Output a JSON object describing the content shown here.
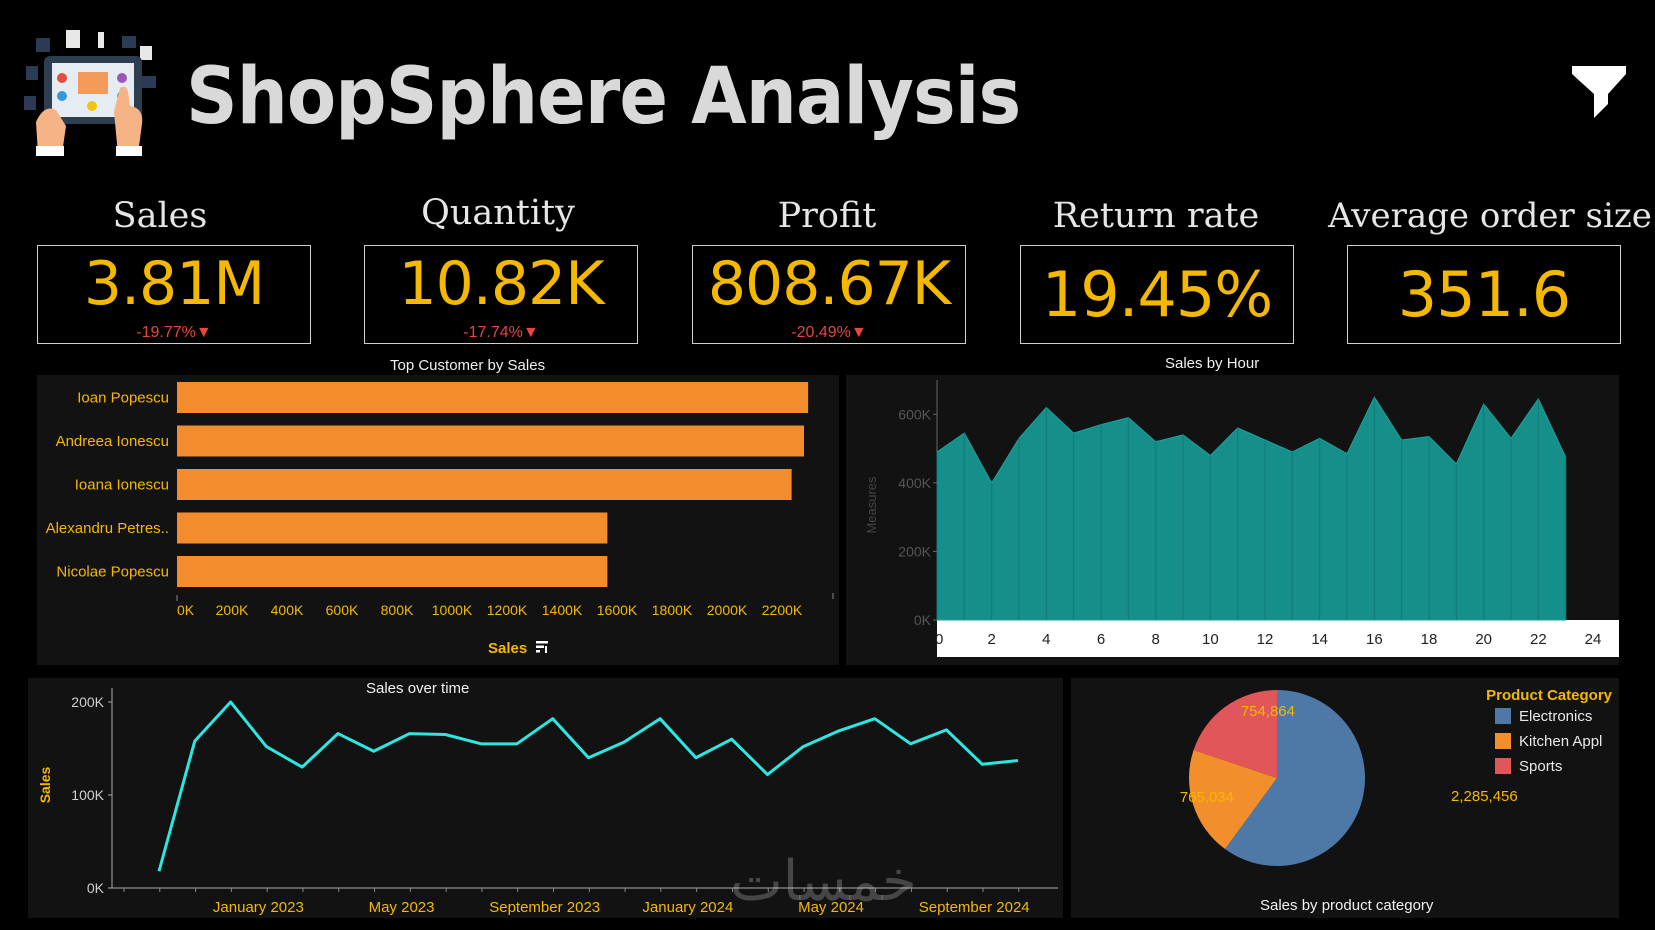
{
  "header": {
    "title": "ShopSphere Analysis",
    "logo_icon": "shopping-tablet-logo-icon",
    "filter_icon": "filter-icon"
  },
  "kpis": [
    {
      "label": "Sales",
      "value": "3.81M",
      "delta": "-19.77%▼"
    },
    {
      "label": "Quantity",
      "value": "10.82K",
      "delta": "-17.74%▼"
    },
    {
      "label": "Profit",
      "value": "808.67K",
      "delta": "-20.49%▼"
    },
    {
      "label": "Return rate",
      "value": "19.45%",
      "delta": ""
    },
    {
      "label": "Average order size",
      "value": "351.6",
      "delta": ""
    }
  ],
  "colors": {
    "background": "#000000",
    "panel": "#121212",
    "kpi_value": "#f5b800",
    "kpi_delta": "#e8453c",
    "bar": "#f28c2e",
    "area": "#168f8a",
    "line": "#2ee6e0",
    "axis_label": "#f5b800",
    "electronics": "#4e79a7",
    "kitchen": "#f28e2b",
    "sports": "#e15759"
  },
  "chart_data": [
    {
      "type": "bar",
      "title": "Top Customer by Sales",
      "xlabel": "Sales",
      "categories": [
        "Ioan Popescu",
        "Andreea Ionescu",
        "Ioana Ionescu",
        "Alexandru Petres..",
        "Nicolae Popescu"
      ],
      "values": [
        2295000,
        2280000,
        2235000,
        1565000,
        1565000
      ],
      "xlim": [
        0,
        2400000
      ],
      "xticks": [
        "0K",
        "200K",
        "400K",
        "600K",
        "800K",
        "1000K",
        "1200K",
        "1400K",
        "1600K",
        "1800K",
        "2000K",
        "2200K"
      ],
      "sort_icon": "sort-descending-icon"
    },
    {
      "type": "area",
      "title": "Sales by Hour",
      "ylabel": "Measures",
      "x": [
        0,
        1,
        2,
        3,
        4,
        5,
        6,
        7,
        8,
        9,
        10,
        11,
        12,
        13,
        14,
        15,
        16,
        17,
        18,
        19,
        20,
        21,
        22,
        23
      ],
      "values": [
        490000,
        545000,
        400000,
        530000,
        620000,
        545000,
        570000,
        590000,
        520000,
        540000,
        480000,
        560000,
        525000,
        490000,
        530000,
        485000,
        650000,
        525000,
        535000,
        455000,
        630000,
        530000,
        645000,
        475000
      ],
      "ylim": [
        0,
        700000
      ],
      "yticks": [
        "0K",
        "200K",
        "400K",
        "600K"
      ],
      "xticks": [
        "0",
        "2",
        "4",
        "6",
        "8",
        "10",
        "12",
        "14",
        "16",
        "18",
        "20",
        "22",
        "24"
      ]
    },
    {
      "type": "line",
      "title": "Sales over time",
      "ylabel": "Sales",
      "x": [
        "2022-10",
        "2022-11",
        "2022-12",
        "2023-01",
        "2023-02",
        "2023-03",
        "2023-04",
        "2023-05",
        "2023-06",
        "2023-07",
        "2023-08",
        "2023-09",
        "2023-10",
        "2023-11",
        "2023-12",
        "2024-01",
        "2024-02",
        "2024-03",
        "2024-04",
        "2024-05",
        "2024-06",
        "2024-07",
        "2024-08",
        "2024-09",
        "2024-10"
      ],
      "values": [
        18000,
        158000,
        200000,
        152000,
        130000,
        166000,
        147000,
        166000,
        165000,
        155000,
        155000,
        182000,
        140000,
        157000,
        182000,
        140000,
        160000,
        122000,
        152000,
        169000,
        182000,
        155000,
        170000,
        133000,
        137000
      ],
      "ylim": [
        0,
        215000
      ],
      "yticks": [
        "0K",
        "100K",
        "200K"
      ],
      "xticks": [
        "January 2023",
        "May 2023",
        "September 2023",
        "January 2024",
        "May 2024",
        "September 2024"
      ]
    },
    {
      "type": "pie",
      "title": "Sales by product category",
      "legend_title": "Product Category",
      "legend_position": "top-right",
      "labels": [
        "Electronics",
        "Kitchen Appl",
        "Sports"
      ],
      "values": [
        2285456,
        765034,
        754864
      ],
      "value_labels": [
        "2,285,456",
        "765,034",
        "754,864"
      ]
    }
  ],
  "watermark": "خمسات"
}
